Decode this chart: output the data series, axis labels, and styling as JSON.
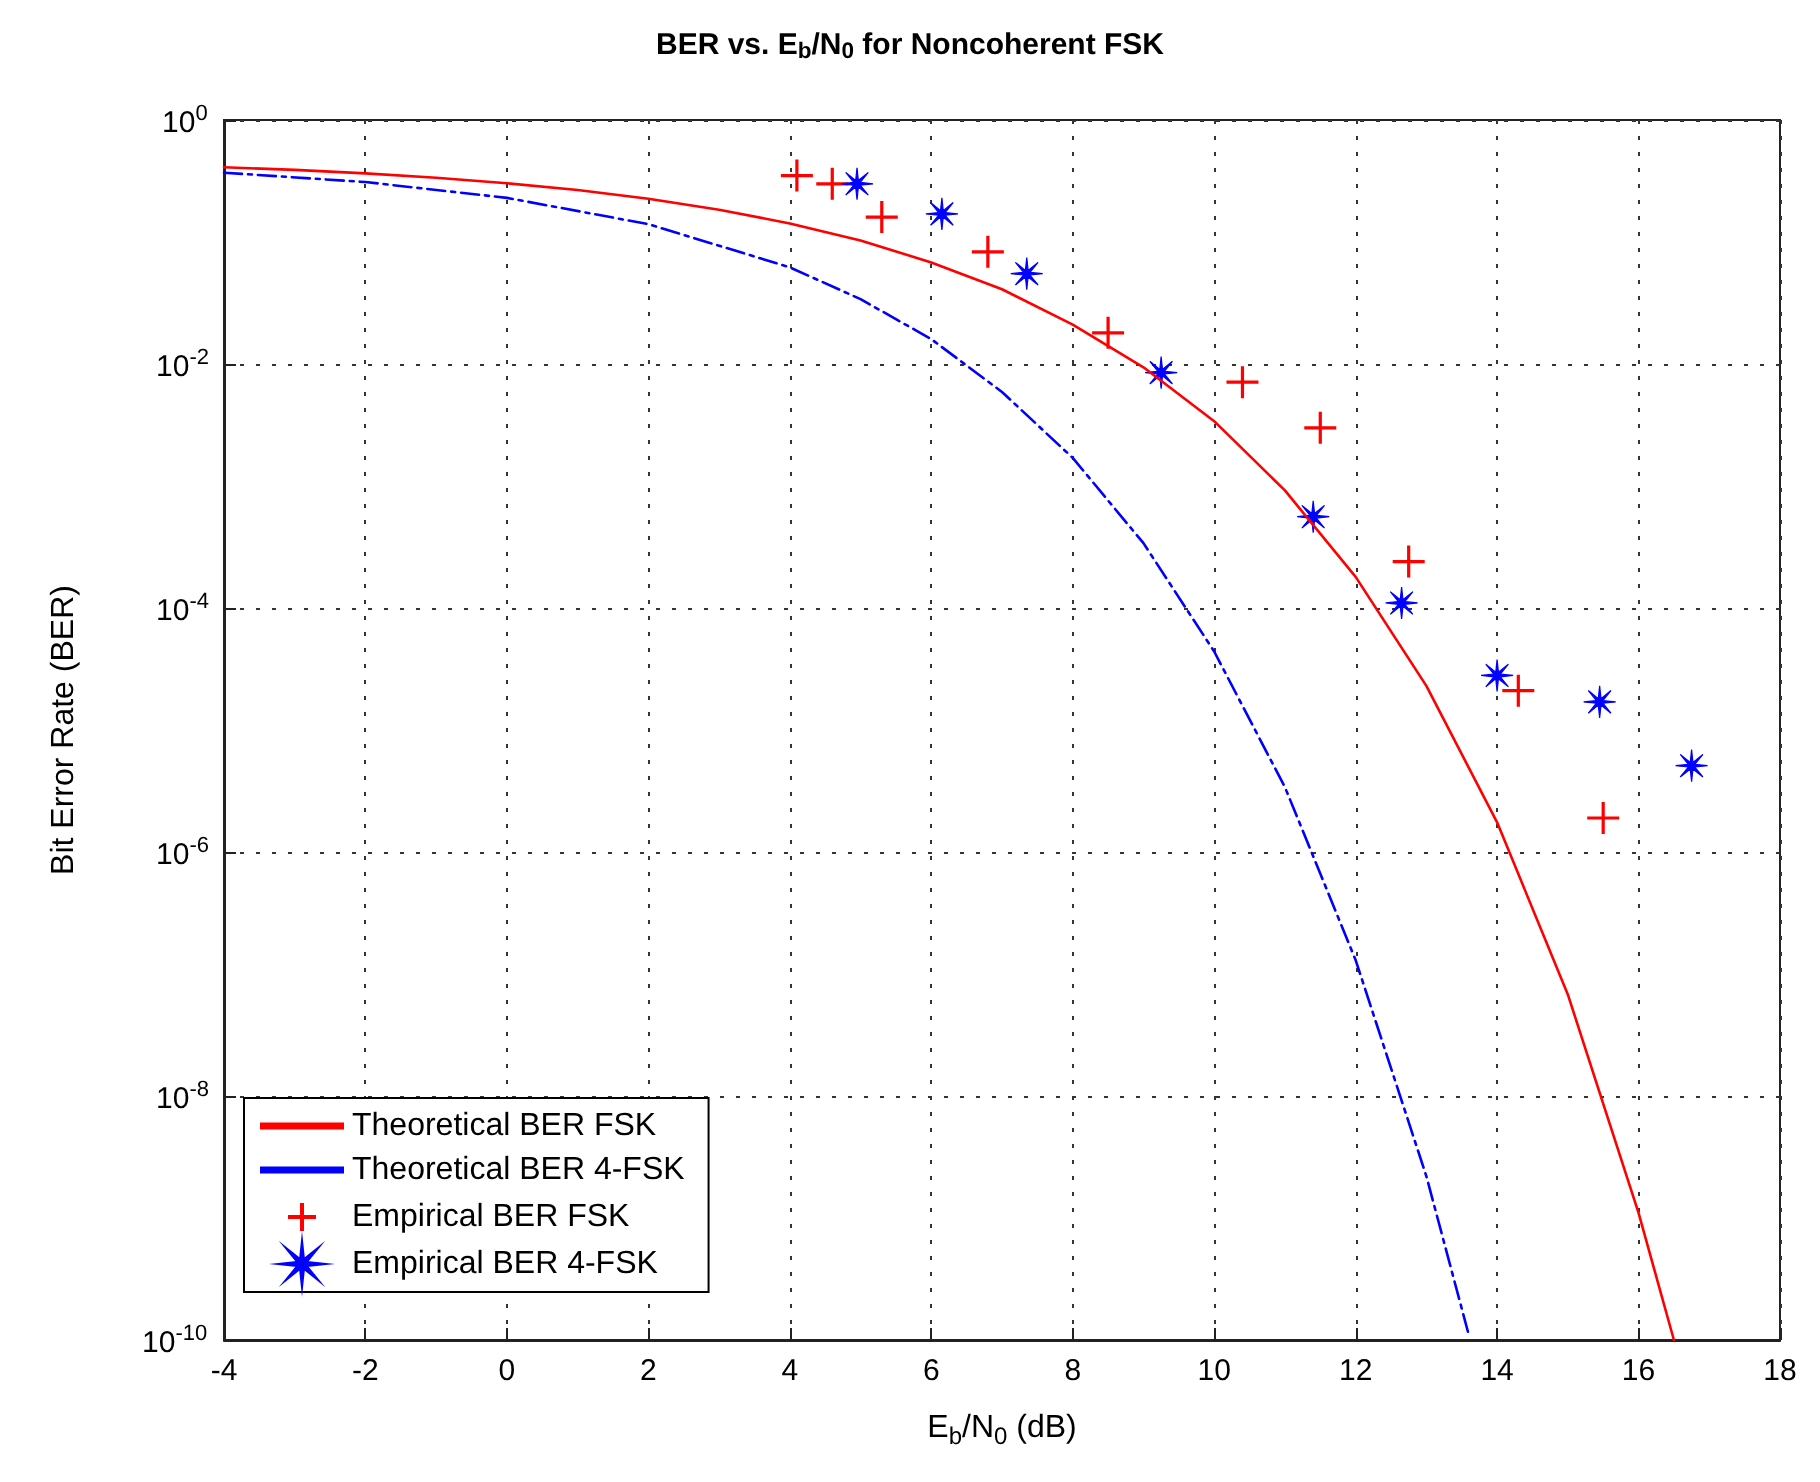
{
  "chart_data": {
    "type": "line",
    "title": "BER vs. E$_{b}$/N$_{0}$ for Noncoherent FSK",
    "xlabel": "E$_{b}$/N$_{0}$ (dB)",
    "ylabel": "Bit Error Rate (BER)",
    "log": "y",
    "grid": true,
    "legend": "bottom left",
    "xlim": [
      -4,
      18
    ],
    "xticks": [
      -4,
      -2,
      0,
      2,
      4,
      6,
      8,
      10,
      12,
      14,
      16,
      18
    ],
    "ylim": [
      1e-10,
      1
    ],
    "yticks": [
      {
        "value": 1e-10,
        "label": "10$^{-10}$"
      },
      {
        "value": 1e-08,
        "label": "10$^{-8}$"
      },
      {
        "value": 1e-06,
        "label": "10$^{-6}$"
      },
      {
        "value": 0.0001,
        "label": "10$^{-4}$"
      },
      {
        "value": 0.01,
        "label": "10$^{-2}$"
      },
      {
        "value": 1,
        "label": "10$^{0}$"
      }
    ],
    "series": [
      {
        "name": "Theoretical BER FSK",
        "color": "#ff0000",
        "line_style": "solid",
        "marker": "none",
        "x": [
          -4,
          -3,
          -2,
          -1,
          0,
          1,
          2,
          3,
          4,
          5,
          6,
          7,
          8,
          9,
          10,
          11,
          12,
          13,
          14,
          15,
          16,
          16.5
        ],
        "values": [
          0.41,
          0.39,
          0.365,
          0.336,
          0.303,
          0.267,
          0.226,
          0.184,
          0.142,
          0.103,
          0.068,
          0.041,
          0.021,
          0.0094,
          0.0034,
          0.00092,
          0.00018,
          2.3e-05,
          1.75e-06,
          6.8e-08,
          1.1e-09,
          1e-10
        ]
      },
      {
        "name": "Theoretical BER 4-FSK",
        "color": "#0000ff",
        "line_style": "dashdot",
        "marker": "none",
        "x": [
          -4,
          -2,
          0,
          2,
          4,
          5,
          6,
          7,
          8,
          9,
          10,
          11,
          12,
          13,
          13.6
        ],
        "values": [
          0.37,
          0.31,
          0.23,
          0.14,
          0.062,
          0.034,
          0.016,
          0.0059,
          0.0017,
          0.00034,
          4.4e-05,
          3.4e-06,
          1.3e-07,
          2.2e-09,
          1.1e-10
        ]
      },
      {
        "name": "Empirical BER FSK",
        "type": "scatter",
        "color": "#ff0000",
        "marker": "cross",
        "x": [
          4.1,
          4.6,
          5.3,
          6.8,
          8.5,
          10.4,
          11.5,
          12.75,
          14.3,
          15.5
        ],
        "values": [
          0.35,
          0.3,
          0.16,
          0.083,
          0.018,
          0.0071,
          0.003,
          0.00024,
          2.1e-05,
          1.9e-06
        ]
      },
      {
        "name": "Empirical BER 4-FSK",
        "type": "scatter",
        "color": "#0000ff",
        "marker": "star",
        "x": [
          4.95,
          6.15,
          7.35,
          9.25,
          11.4,
          12.65,
          14.0,
          15.45,
          16.75
        ],
        "values": [
          0.3,
          0.17,
          0.055,
          0.0085,
          0.00056,
          0.00011,
          2.8e-05,
          1.7e-05,
          5.1e-06
        ]
      }
    ]
  }
}
